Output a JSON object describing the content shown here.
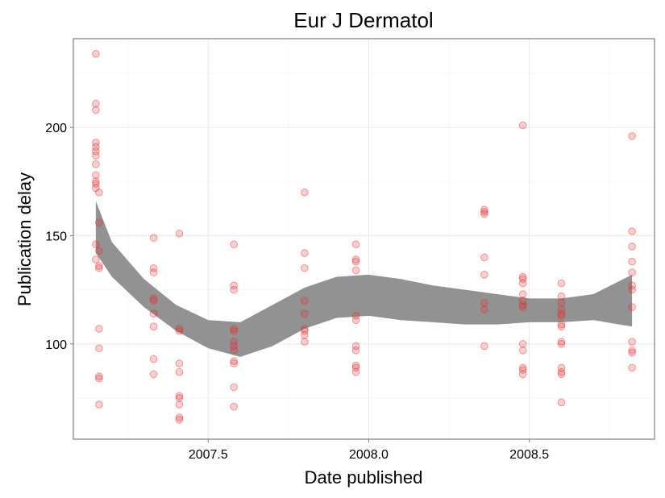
{
  "chart_data": {
    "type": "scatter",
    "title": "Eur J Dermatol",
    "xlabel": "Date published",
    "ylabel": "Publication delay",
    "xlim": [
      2007.08,
      2008.89
    ],
    "ylim": [
      56,
      241
    ],
    "x_ticks": [
      2007.5,
      2008.0,
      2008.5
    ],
    "x_tick_labels": [
      "2007.5",
      "2008.0",
      "2008.5"
    ],
    "y_ticks": [
      100,
      150,
      200
    ],
    "y_tick_labels": [
      "100",
      "150",
      "200"
    ],
    "grid": true,
    "colors": {
      "points": "#e8272b",
      "band": "#8c8c8c",
      "border": "#7f7f7f",
      "grid": "#ebebeb"
    },
    "points": [
      [
        2007.15,
        234
      ],
      [
        2007.15,
        211
      ],
      [
        2007.15,
        208
      ],
      [
        2007.15,
        193
      ],
      [
        2007.15,
        191
      ],
      [
        2007.15,
        189
      ],
      [
        2007.15,
        187
      ],
      [
        2007.15,
        183
      ],
      [
        2007.15,
        178
      ],
      [
        2007.15,
        175
      ],
      [
        2007.15,
        174
      ],
      [
        2007.15,
        172
      ],
      [
        2007.16,
        170
      ],
      [
        2007.16,
        156
      ],
      [
        2007.15,
        146
      ],
      [
        2007.16,
        143
      ],
      [
        2007.15,
        139
      ],
      [
        2007.16,
        136
      ],
      [
        2007.16,
        135
      ],
      [
        2007.16,
        107
      ],
      [
        2007.16,
        98
      ],
      [
        2007.16,
        85
      ],
      [
        2007.16,
        84
      ],
      [
        2007.16,
        72
      ],
      [
        2007.33,
        149
      ],
      [
        2007.33,
        135
      ],
      [
        2007.33,
        133
      ],
      [
        2007.33,
        121
      ],
      [
        2007.33,
        120
      ],
      [
        2007.33,
        114
      ],
      [
        2007.33,
        108
      ],
      [
        2007.33,
        93
      ],
      [
        2007.33,
        86
      ],
      [
        2007.41,
        151
      ],
      [
        2007.41,
        107
      ],
      [
        2007.41,
        106
      ],
      [
        2007.41,
        91
      ],
      [
        2007.41,
        87
      ],
      [
        2007.41,
        76
      ],
      [
        2007.41,
        75
      ],
      [
        2007.41,
        72
      ],
      [
        2007.41,
        66
      ],
      [
        2007.41,
        65
      ],
      [
        2007.58,
        146
      ],
      [
        2007.58,
        127
      ],
      [
        2007.58,
        125
      ],
      [
        2007.58,
        107
      ],
      [
        2007.58,
        106
      ],
      [
        2007.58,
        101
      ],
      [
        2007.58,
        99
      ],
      [
        2007.58,
        97
      ],
      [
        2007.58,
        92
      ],
      [
        2007.58,
        91
      ],
      [
        2007.58,
        80
      ],
      [
        2007.58,
        71
      ],
      [
        2007.8,
        170
      ],
      [
        2007.8,
        142
      ],
      [
        2007.8,
        135
      ],
      [
        2007.8,
        120
      ],
      [
        2007.8,
        114
      ],
      [
        2007.8,
        107
      ],
      [
        2007.8,
        106
      ],
      [
        2007.8,
        104
      ],
      [
        2007.8,
        101
      ],
      [
        2007.96,
        146
      ],
      [
        2007.96,
        139
      ],
      [
        2007.96,
        138
      ],
      [
        2007.96,
        134
      ],
      [
        2007.96,
        113
      ],
      [
        2007.96,
        111
      ],
      [
        2007.96,
        99
      ],
      [
        2007.96,
        97
      ],
      [
        2007.96,
        90
      ],
      [
        2007.96,
        89
      ],
      [
        2007.96,
        87
      ],
      [
        2008.36,
        162
      ],
      [
        2008.36,
        161
      ],
      [
        2008.36,
        160
      ],
      [
        2008.36,
        140
      ],
      [
        2008.36,
        132
      ],
      [
        2008.36,
        119
      ],
      [
        2008.36,
        116
      ],
      [
        2008.36,
        99
      ],
      [
        2008.48,
        201
      ],
      [
        2008.48,
        131
      ],
      [
        2008.48,
        130
      ],
      [
        2008.48,
        128
      ],
      [
        2008.48,
        123
      ],
      [
        2008.48,
        120
      ],
      [
        2008.48,
        118
      ],
      [
        2008.48,
        117
      ],
      [
        2008.48,
        100
      ],
      [
        2008.48,
        97
      ],
      [
        2008.48,
        89
      ],
      [
        2008.48,
        88
      ],
      [
        2008.48,
        86
      ],
      [
        2008.6,
        128
      ],
      [
        2008.6,
        122
      ],
      [
        2008.6,
        119
      ],
      [
        2008.6,
        116
      ],
      [
        2008.6,
        114
      ],
      [
        2008.6,
        113
      ],
      [
        2008.6,
        109
      ],
      [
        2008.6,
        108
      ],
      [
        2008.6,
        101
      ],
      [
        2008.6,
        100
      ],
      [
        2008.6,
        89
      ],
      [
        2008.6,
        87
      ],
      [
        2008.6,
        86
      ],
      [
        2008.6,
        73
      ],
      [
        2008.82,
        196
      ],
      [
        2008.82,
        152
      ],
      [
        2008.82,
        145
      ],
      [
        2008.82,
        138
      ],
      [
        2008.82,
        133
      ],
      [
        2008.82,
        127
      ],
      [
        2008.82,
        125
      ],
      [
        2008.82,
        117
      ],
      [
        2008.82,
        101
      ],
      [
        2008.82,
        97
      ],
      [
        2008.82,
        96
      ],
      [
        2008.82,
        89
      ]
    ],
    "smooth_band": {
      "x": [
        2007.15,
        2007.2,
        2007.3,
        2007.4,
        2007.5,
        2007.6,
        2007.7,
        2007.8,
        2007.9,
        2008.0,
        2008.1,
        2008.2,
        2008.3,
        2008.4,
        2008.5,
        2008.6,
        2008.7,
        2008.82
      ],
      "upper": [
        166,
        147,
        130,
        118,
        111,
        110,
        118,
        126,
        131,
        132,
        130,
        127,
        125,
        123,
        121,
        121,
        123,
        132
      ],
      "lower": [
        142,
        131,
        117,
        106,
        98,
        94,
        99,
        107,
        112,
        113,
        111,
        110,
        109,
        109,
        110,
        110,
        111,
        108
      ]
    }
  }
}
